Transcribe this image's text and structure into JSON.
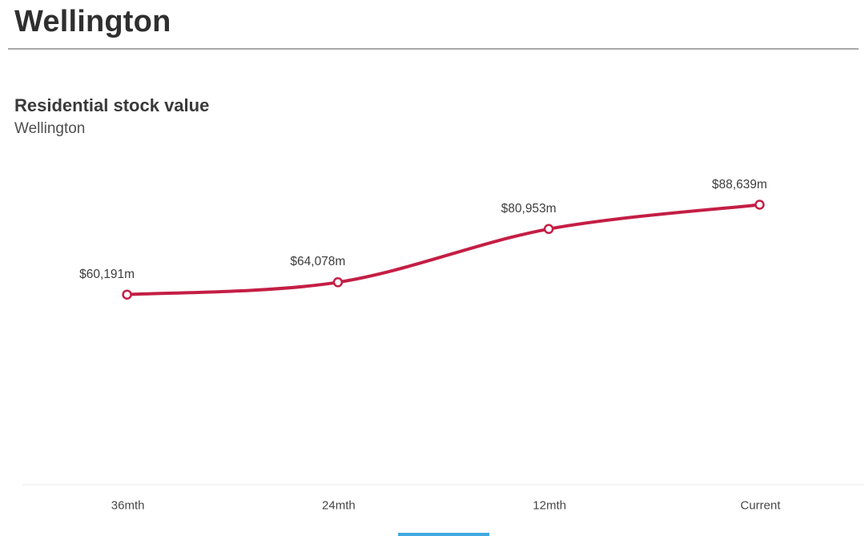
{
  "page": {
    "title": "Wellington"
  },
  "chart": {
    "title": "Residential stock value",
    "subtitle": "Wellington"
  },
  "chart_data": {
    "type": "line",
    "title": "Residential stock value",
    "subtitle": "Wellington",
    "categories": [
      "36mth",
      "24mth",
      "12mth",
      "Current"
    ],
    "values": [
      60191,
      64078,
      80953,
      88639
    ],
    "point_labels": [
      "$60,191m",
      "$64,078m",
      "$80,953m",
      "$88,639m"
    ],
    "ylim": [
      0,
      105000
    ],
    "grid": false,
    "legend": false,
    "smooth": true,
    "line_color": "#c41e45",
    "marker_style": "open-circle",
    "marker_fill": "#ffffff",
    "label_color": "#3d3d3d",
    "axis_label_color": "#474747",
    "axis_line_color": "#e8e8e8"
  },
  "misc": {
    "bottom_bar_color": "#3fa9e0"
  }
}
